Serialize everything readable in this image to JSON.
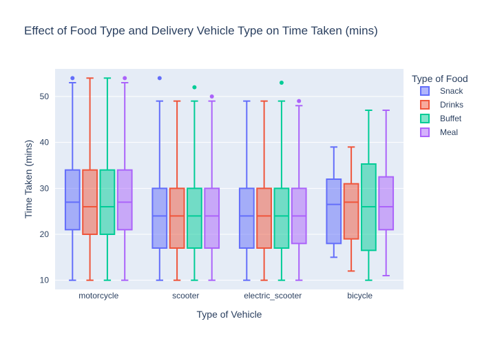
{
  "chart_data": {
    "type": "box",
    "title": "Effect of Food Type and Delivery Vehicle Type on Time Taken (mins)",
    "xlabel": "Type of Vehicle",
    "ylabel": "Time Taken (mins)",
    "ylim": [
      8,
      56
    ],
    "yticks": [
      10,
      20,
      30,
      40,
      50
    ],
    "categories": [
      "motorcycle",
      "scooter",
      "electric_scooter",
      "bicycle"
    ],
    "legend": {
      "title": "Type of Food",
      "position": "right"
    },
    "series": [
      {
        "name": "Snack",
        "color": "#636EFA",
        "boxes": [
          {
            "min": 10,
            "q1": 21,
            "median": 27,
            "q3": 34,
            "max": 53,
            "outliers": [
              54
            ]
          },
          {
            "min": 10,
            "q1": 17,
            "median": 24,
            "q3": 30,
            "max": 49,
            "outliers": [
              54
            ]
          },
          {
            "min": 10,
            "q1": 17,
            "median": 24,
            "q3": 30,
            "max": 49,
            "outliers": []
          },
          {
            "min": 15,
            "q1": 18,
            "median": 26.5,
            "q3": 32,
            "max": 39,
            "outliers": []
          }
        ]
      },
      {
        "name": "Drinks",
        "color": "#EF553B",
        "boxes": [
          {
            "min": 10,
            "q1": 20,
            "median": 26,
            "q3": 34,
            "max": 54,
            "outliers": []
          },
          {
            "min": 10,
            "q1": 17,
            "median": 24,
            "q3": 30,
            "max": 49,
            "outliers": []
          },
          {
            "min": 10,
            "q1": 17,
            "median": 24,
            "q3": 30,
            "max": 49,
            "outliers": []
          },
          {
            "min": 12,
            "q1": 19,
            "median": 27,
            "q3": 31,
            "max": 39,
            "outliers": []
          }
        ]
      },
      {
        "name": "Buffet",
        "color": "#00CC96",
        "boxes": [
          {
            "min": 10,
            "q1": 20,
            "median": 26,
            "q3": 34,
            "max": 54,
            "outliers": []
          },
          {
            "min": 10,
            "q1": 17,
            "median": 24,
            "q3": 30,
            "max": 49,
            "outliers": [
              52
            ]
          },
          {
            "min": 10,
            "q1": 17,
            "median": 24,
            "q3": 30,
            "max": 49,
            "outliers": [
              53
            ]
          },
          {
            "min": 10,
            "q1": 16.5,
            "median": 26,
            "q3": 35.3,
            "max": 47,
            "outliers": []
          }
        ]
      },
      {
        "name": "Meal",
        "color": "#AB63FA",
        "boxes": [
          {
            "min": 10,
            "q1": 21,
            "median": 27,
            "q3": 34,
            "max": 53,
            "outliers": [
              54
            ]
          },
          {
            "min": 10,
            "q1": 17,
            "median": 24,
            "q3": 30,
            "max": 49,
            "outliers": [
              50
            ]
          },
          {
            "min": 10,
            "q1": 18,
            "median": 24,
            "q3": 30,
            "max": 48,
            "outliers": [
              49
            ]
          },
          {
            "min": 11,
            "q1": 21,
            "median": 26,
            "q3": 32.5,
            "max": 47,
            "outliers": []
          }
        ]
      }
    ]
  }
}
